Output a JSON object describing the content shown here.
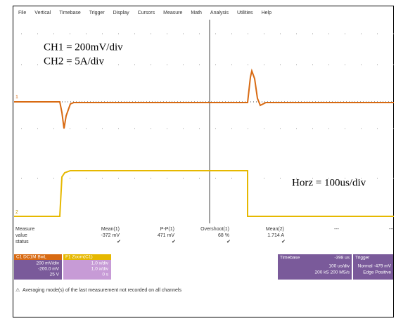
{
  "menu": [
    "File",
    "Vertical",
    "Timebase",
    "Trigger",
    "Display",
    "Cursors",
    "Measure",
    "Math",
    "Analysis",
    "Utilities",
    "Help"
  ],
  "annotations": {
    "ch1": "CH1 = 200mV/div",
    "ch2": "CH2 = 5A/div",
    "horz": "Horz = 100us/div"
  },
  "markers": {
    "ch1": "1",
    "ch2": "2"
  },
  "measure": {
    "row_labels": [
      "Measure",
      "value",
      "status"
    ],
    "columns": [
      {
        "name": "Mean(1)",
        "value": "-372 mV"
      },
      {
        "name": "P-P(1)",
        "value": "471 mV"
      },
      {
        "name": "Overshoot(1)",
        "value": "68 %"
      },
      {
        "name": "Mean(2)",
        "value": "1.714 A"
      },
      {
        "name": "---",
        "value": ""
      },
      {
        "name": "---",
        "value": ""
      }
    ]
  },
  "channels": [
    {
      "title": "C1 DC1M BwL",
      "lines": [
        "200 mV/div",
        "-200.0 mV",
        "25 V"
      ]
    },
    {
      "title": "F1 Zoom(C1)",
      "lines": [
        "1.0 x/div",
        "1.0 x/div",
        "0 s"
      ]
    }
  ],
  "timebase": {
    "title": "Timebase",
    "value": "-398 us",
    "lines": [
      "100 us/div",
      "200 kS   200 MS/s"
    ]
  },
  "trigger": {
    "title": "Trigger",
    "lines": [
      "Normal  -479 mV",
      "Edge   Positive"
    ]
  },
  "warning": "Averaging mode(s) of the last measurement not recorded on all channels"
}
